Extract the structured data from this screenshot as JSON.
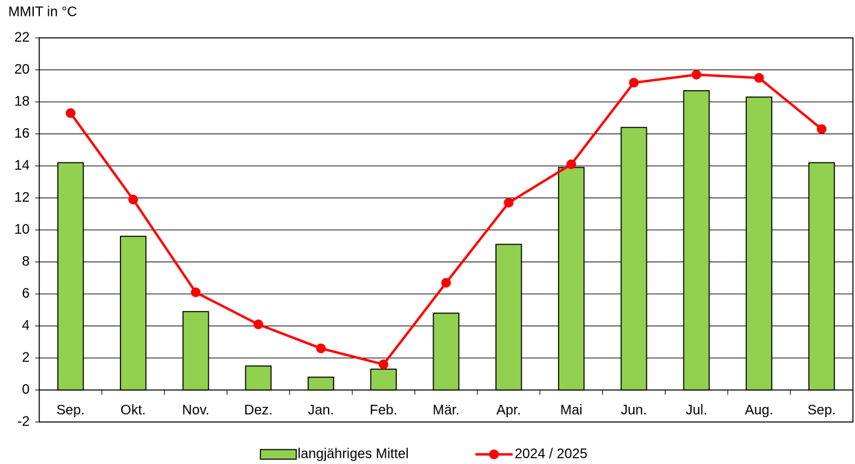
{
  "chart_data": {
    "type": "bar",
    "y_label": "MMIT in °C",
    "categories": [
      "Sep.",
      "Okt.",
      "Nov.",
      "Dez.",
      "Jan.",
      "Feb.",
      "Mär.",
      "Apr.",
      "Mai",
      "Jun.",
      "Jul.",
      "Aug.",
      "Sep."
    ],
    "series": [
      {
        "name": "langjähriges Mittel",
        "type": "bar",
        "color": "#92d050",
        "values": [
          14.2,
          9.6,
          4.9,
          1.5,
          0.8,
          1.3,
          4.8,
          9.1,
          13.9,
          16.4,
          18.7,
          18.3,
          14.2
        ]
      },
      {
        "name": "2024 / 2025",
        "type": "line",
        "color": "#ff0000",
        "values": [
          17.3,
          11.9,
          6.1,
          4.1,
          2.6,
          1.6,
          6.7,
          11.7,
          14.1,
          19.2,
          19.7,
          19.5,
          16.3
        ]
      }
    ],
    "ylim": [
      -2,
      22
    ],
    "yticks": [
      -2,
      0,
      2,
      4,
      6,
      8,
      10,
      12,
      14,
      16,
      18,
      20,
      22
    ],
    "grid": true
  }
}
